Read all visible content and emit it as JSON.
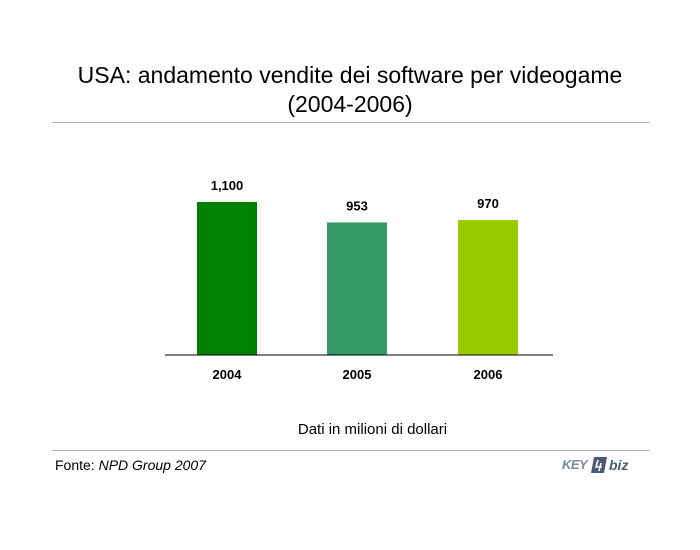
{
  "title": {
    "line1": "USA: andamento vendite dei software per videogame",
    "line2": "(2004-2006)"
  },
  "note": "Dati in milioni di dollari",
  "source": {
    "label": "Fonte:",
    "name": "NPD Group 2007"
  },
  "logo": {
    "text_left": "KEY",
    "text_right": "biz"
  },
  "chart_data": {
    "type": "bar",
    "categories": [
      "2004",
      "2005",
      "2006"
    ],
    "values": [
      1100,
      953,
      970
    ],
    "value_labels": [
      "1,100",
      "953",
      "970"
    ],
    "colors": [
      "#008000",
      "#339966",
      "#99cc00"
    ],
    "title": "",
    "xlabel": "",
    "ylabel": "",
    "ylim": [
      0,
      1100
    ],
    "grid": false,
    "legend": "none"
  }
}
